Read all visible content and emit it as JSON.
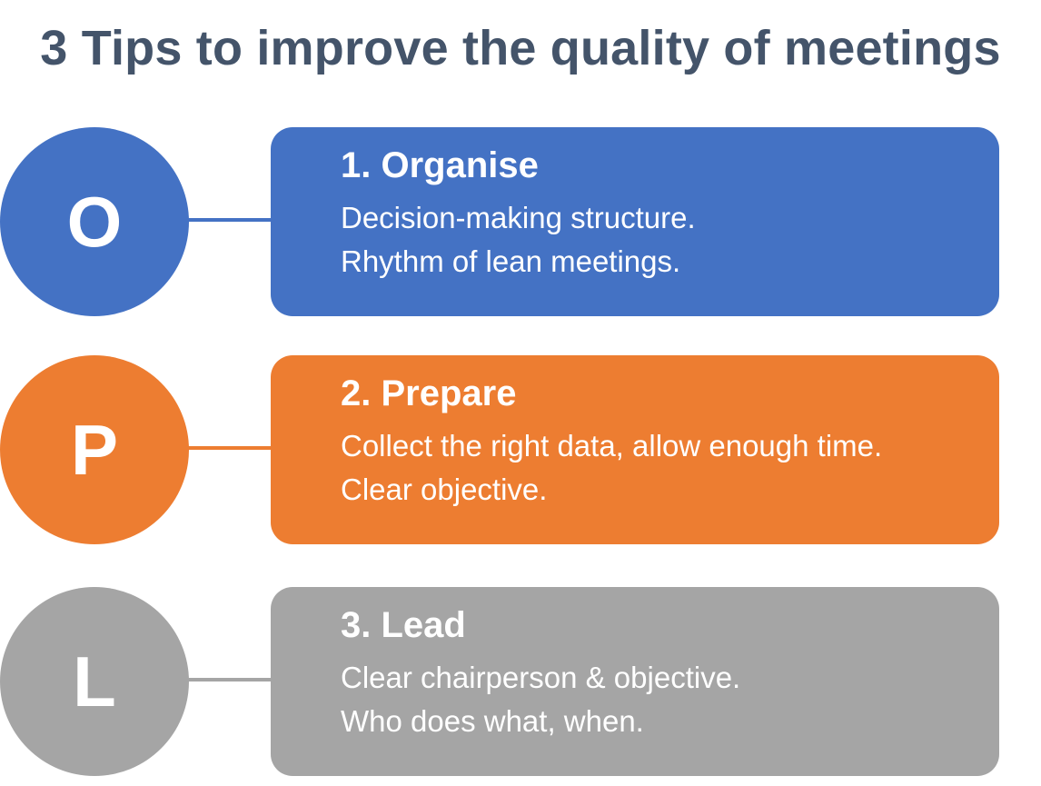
{
  "title": "3 Tips to improve the quality of meetings",
  "tips": [
    {
      "letter": "O",
      "heading": "1. Organise",
      "lines": [
        "Decision-making structure.",
        "Rhythm of lean meetings."
      ],
      "color": "#4472c4"
    },
    {
      "letter": "P",
      "heading": "2. Prepare",
      "lines": [
        "Collect the right data, allow enough time.",
        "Clear objective."
      ],
      "color": "#ed7d31"
    },
    {
      "letter": "L",
      "heading": "3. Lead",
      "lines": [
        "Clear chairperson & objective.",
        "Who does what, when."
      ],
      "color": "#a5a5a5"
    }
  ],
  "title_color": "#44546a"
}
